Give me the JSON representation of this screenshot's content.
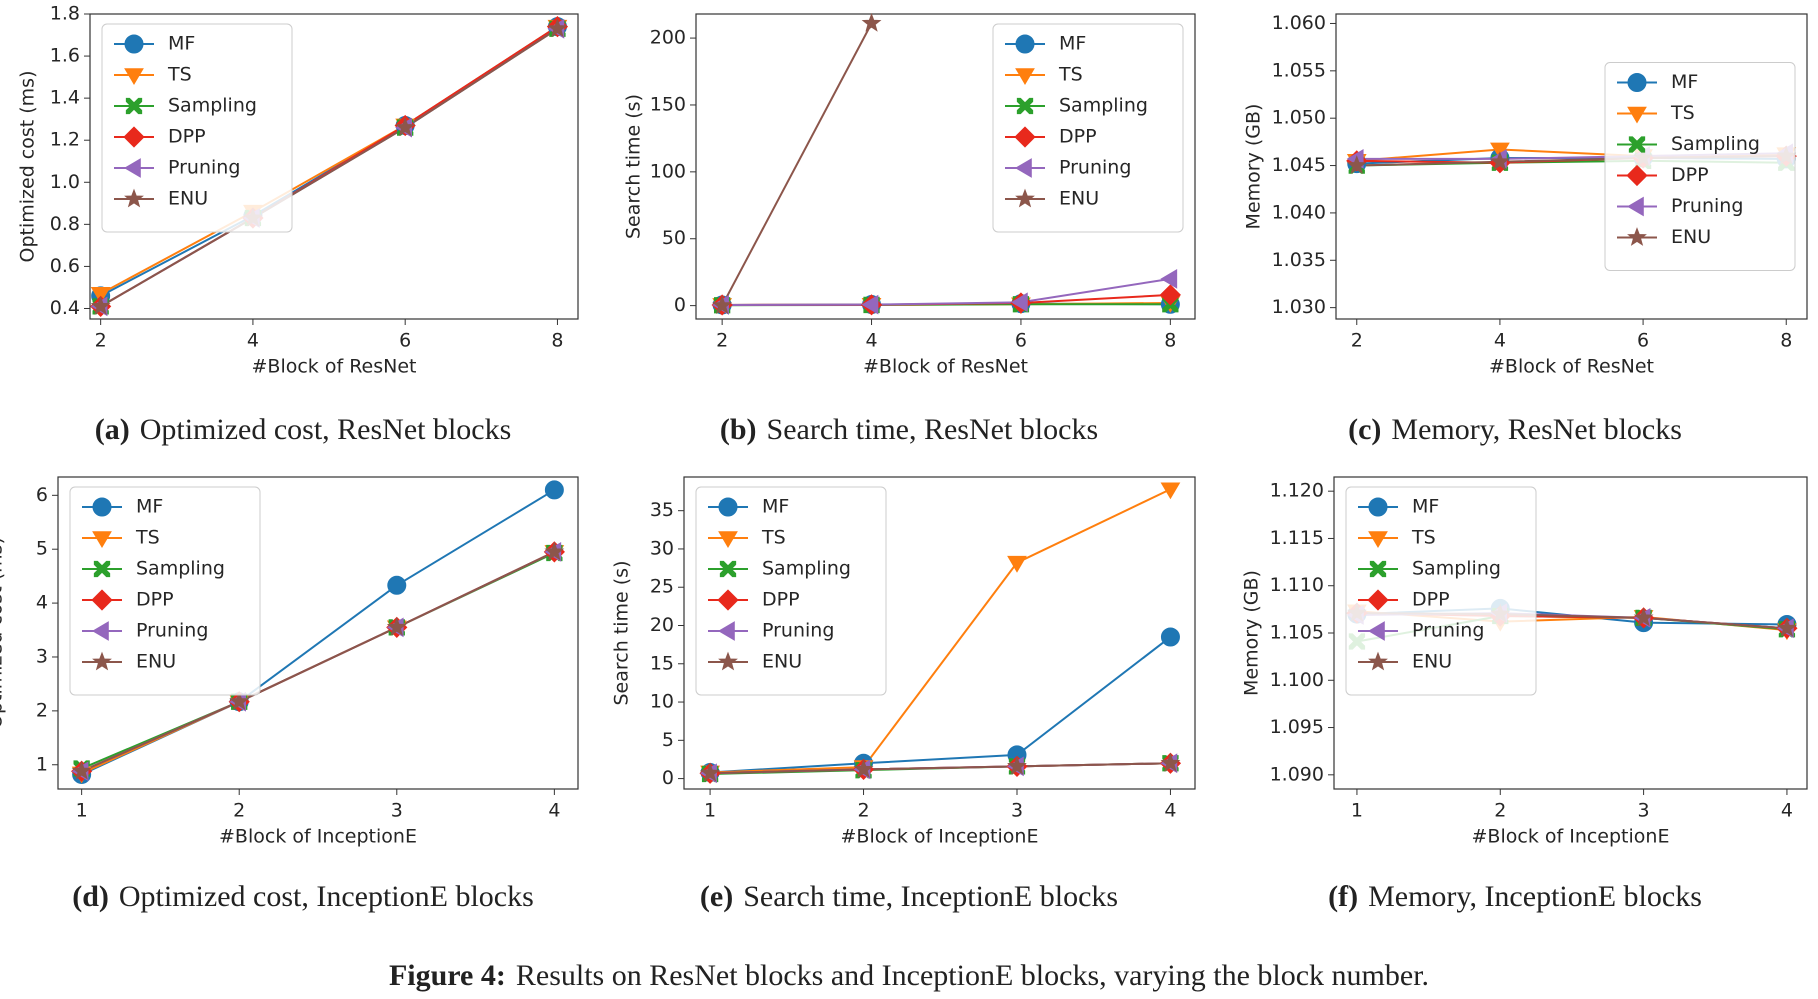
{
  "charts_title": {
    "label": "Figure 4:",
    "text": "Results on ResNet blocks and InceptionE blocks, varying the block number."
  },
  "chart_data": [
    {
      "type": "line",
      "caption_label": "(a)",
      "caption": "Optimized cost, ResNet blocks",
      "xlabel": "#Block of ResNet",
      "ylabel": "Optimized cost (ms)",
      "legend": "upper left",
      "x": [
        2,
        4,
        6,
        8
      ],
      "xlim": [
        1.86,
        8.27
      ],
      "xticks": [
        2,
        4,
        6,
        8
      ],
      "ylim": [
        0.35,
        1.8
      ],
      "yticks": [
        0.4,
        0.6,
        0.8,
        {
          "value": 1,
          "label": "1.0"
        },
        1.2,
        1.4,
        1.6,
        1.8
      ],
      "series": [
        {
          "name": "MF",
          "color": "#1f77b4",
          "marker": "circle",
          "values": [
            0.46,
            0.84,
            1.27,
            1.74
          ]
        },
        {
          "name": "TS",
          "color": "#ff7f0e",
          "marker": "tri-down",
          "values": [
            0.47,
            0.86,
            1.27,
            1.74
          ]
        },
        {
          "name": "Sampling",
          "color": "#2ca02c",
          "marker": "x",
          "values": [
            0.41,
            0.83,
            1.26,
            1.73
          ]
        },
        {
          "name": "DPP",
          "color": "#e8291c",
          "marker": "diamond",
          "values": [
            0.41,
            0.83,
            1.27,
            1.74
          ]
        },
        {
          "name": "Pruning",
          "color": "#9467bd",
          "marker": "tri-left",
          "values": [
            0.41,
            0.83,
            1.26,
            1.73
          ]
        },
        {
          "name": "ENU",
          "color": "#8c564b",
          "marker": "star",
          "values": [
            0.41,
            0.83,
            1.26,
            1.73
          ]
        }
      ]
    },
    {
      "type": "line",
      "caption_label": "(b)",
      "caption": "Search time, ResNet blocks",
      "xlabel": "#Block of ResNet",
      "ylabel": "Search time (s)",
      "legend": "upper right",
      "x": [
        2,
        4,
        6,
        8
      ],
      "xlim": [
        1.65,
        8.33
      ],
      "xticks": [
        2,
        4,
        6,
        8
      ],
      "ylim": [
        -10,
        218
      ],
      "yticks": [
        0,
        50,
        100,
        150,
        200
      ],
      "series": [
        {
          "name": "MF",
          "color": "#1f77b4",
          "marker": "circle",
          "values": [
            0.5,
            0.8,
            1.5,
            1
          ]
        },
        {
          "name": "TS",
          "color": "#ff7f0e",
          "marker": "tri-down",
          "values": [
            0.5,
            0.6,
            1,
            2
          ]
        },
        {
          "name": "Sampling",
          "color": "#2ca02c",
          "marker": "x",
          "values": [
            0.3,
            0.5,
            1,
            1
          ]
        },
        {
          "name": "DPP",
          "color": "#e8291c",
          "marker": "diamond",
          "values": [
            0.5,
            0.6,
            2,
            8
          ]
        },
        {
          "name": "Pruning",
          "color": "#9467bd",
          "marker": "tri-left",
          "values": [
            0.5,
            0.7,
            2.5,
            20
          ]
        },
        {
          "name": "ENU",
          "color": "#8c564b",
          "marker": "star",
          "values": [
            0,
            211,
            null,
            null
          ]
        }
      ]
    },
    {
      "type": "line",
      "caption_label": "(c)",
      "caption": "Memory, ResNet blocks",
      "xlabel": "#Block of ResNet",
      "ylabel": "Memory (GB)",
      "legend": "center right",
      "x": [
        2,
        4,
        6,
        8
      ],
      "xlim": [
        1.71,
        8.29
      ],
      "xticks": [
        2,
        4,
        6,
        8
      ],
      "ylim": [
        1.0288,
        1.061
      ],
      "yticks": [
        {
          "value": 1.03,
          "label": "1.030"
        },
        {
          "value": 1.035,
          "label": "1.035"
        },
        {
          "value": 1.04,
          "label": "1.040"
        },
        {
          "value": 1.045,
          "label": "1.045"
        },
        {
          "value": 1.05,
          "label": "1.050"
        },
        {
          "value": 1.055,
          "label": "1.055"
        },
        {
          "value": 1.06,
          "label": "1.060"
        }
      ],
      "series": [
        {
          "name": "MF",
          "color": "#1f77b4",
          "marker": "circle",
          "values": [
            1.0452,
            1.0458,
            1.0458,
            1.0457
          ]
        },
        {
          "name": "TS",
          "color": "#ff7f0e",
          "marker": "tri-down",
          "values": [
            1.0455,
            1.0467,
            1.046,
            1.0462
          ]
        },
        {
          "name": "Sampling",
          "color": "#2ca02c",
          "marker": "x",
          "values": [
            1.045,
            1.0453,
            1.0455,
            1.0453
          ]
        },
        {
          "name": "DPP",
          "color": "#e8291c",
          "marker": "diamond",
          "values": [
            1.0455,
            1.0453,
            1.0458,
            1.046
          ]
        },
        {
          "name": "Pruning",
          "color": "#9467bd",
          "marker": "tri-left",
          "values": [
            1.0457,
            1.0457,
            1.046,
            1.0463
          ]
        },
        {
          "name": "ENU",
          "color": "#8c564b",
          "marker": "star",
          "values": [
            1.045,
            1.0454,
            1.0458,
            1.046
          ]
        }
      ]
    },
    {
      "type": "line",
      "caption_label": "(d)",
      "caption": "Optimized cost, InceptionE blocks",
      "xlabel": "#Block of InceptionE",
      "ylabel": "Optimized cost (ms)",
      "legend": "upper left",
      "x": [
        1,
        2,
        3,
        4
      ],
      "xlim": [
        0.85,
        4.15
      ],
      "xticks": [
        1,
        2,
        3,
        4
      ],
      "ylim": [
        0.55,
        6.34
      ],
      "yticks": [
        1,
        2,
        3,
        4,
        5,
        6
      ],
      "series": [
        {
          "name": "MF",
          "color": "#1f77b4",
          "marker": "circle",
          "values": [
            0.82,
            2.17,
            4.33,
            6.1
          ]
        },
        {
          "name": "TS",
          "color": "#ff7f0e",
          "marker": "tri-down",
          "values": [
            0.84,
            2.17,
            3.55,
            4.95
          ]
        },
        {
          "name": "Sampling",
          "color": "#2ca02c",
          "marker": "x",
          "values": [
            0.93,
            2.17,
            3.55,
            4.93
          ]
        },
        {
          "name": "DPP",
          "color": "#e8291c",
          "marker": "diamond",
          "values": [
            0.88,
            2.17,
            3.55,
            4.95
          ]
        },
        {
          "name": "Pruning",
          "color": "#9467bd",
          "marker": "tri-left",
          "values": [
            0.88,
            2.17,
            3.55,
            4.95
          ]
        },
        {
          "name": "ENU",
          "color": "#8c564b",
          "marker": "star",
          "values": [
            0.88,
            2.17,
            3.55,
            4.95
          ]
        }
      ]
    },
    {
      "type": "line",
      "caption_label": "(e)",
      "caption": "Search time, InceptionE blocks",
      "xlabel": "#Block of InceptionE",
      "ylabel": "Search time (s)",
      "legend": "upper left",
      "x": [
        1,
        2,
        3,
        4
      ],
      "xlim": [
        0.83,
        4.16
      ],
      "xticks": [
        1,
        2,
        3,
        4
      ],
      "ylim": [
        -1.36,
        39.4
      ],
      "yticks": [
        0,
        5,
        10,
        15,
        20,
        25,
        30,
        35
      ],
      "series": [
        {
          "name": "MF",
          "color": "#1f77b4",
          "marker": "circle",
          "values": [
            0.8,
            2,
            3.1,
            18.5
          ]
        },
        {
          "name": "TS",
          "color": "#ff7f0e",
          "marker": "tri-down",
          "values": [
            0.8,
            1.5,
            28.2,
            37.8
          ]
        },
        {
          "name": "Sampling",
          "color": "#2ca02c",
          "marker": "x",
          "values": [
            0.6,
            1.1,
            1.6,
            2
          ]
        },
        {
          "name": "DPP",
          "color": "#e8291c",
          "marker": "diamond",
          "values": [
            0.7,
            1.2,
            1.6,
            2
          ]
        },
        {
          "name": "Pruning",
          "color": "#9467bd",
          "marker": "tri-left",
          "values": [
            0.7,
            1.2,
            1.6,
            2
          ]
        },
        {
          "name": "ENU",
          "color": "#8c564b",
          "marker": "star",
          "values": [
            0.7,
            1.2,
            1.6,
            2
          ]
        }
      ]
    },
    {
      "type": "line",
      "caption_label": "(f)",
      "caption": "Memory, InceptionE blocks",
      "xlabel": "#Block of InceptionE",
      "ylabel": "Memory (GB)",
      "legend": "upper left",
      "x": [
        1,
        2,
        3,
        4
      ],
      "xlim": [
        0.84,
        4.14
      ],
      "xticks": [
        1,
        2,
        3,
        4
      ],
      "ylim": [
        1.0885,
        1.1215
      ],
      "yticks": [
        {
          "value": 1.09,
          "label": "1.090"
        },
        {
          "value": 1.095,
          "label": "1.095"
        },
        {
          "value": 1.1,
          "label": "1.100"
        },
        {
          "value": 1.105,
          "label": "1.105"
        },
        {
          "value": 1.11,
          "label": "1.110"
        },
        {
          "value": 1.115,
          "label": "1.115"
        },
        {
          "value": 1.12,
          "label": "1.120"
        }
      ],
      "series": [
        {
          "name": "MF",
          "color": "#1f77b4",
          "marker": "circle",
          "values": [
            1.107,
            1.1076,
            1.1061,
            1.1059
          ]
        },
        {
          "name": "TS",
          "color": "#ff7f0e",
          "marker": "tri-down",
          "values": [
            1.1073,
            1.1062,
            1.1067,
            1.1053
          ]
        },
        {
          "name": "Sampling",
          "color": "#2ca02c",
          "marker": "x",
          "values": [
            1.1041,
            1.1068,
            1.1066,
            1.1054
          ]
        },
        {
          "name": "DPP",
          "color": "#e8291c",
          "marker": "diamond",
          "values": [
            1.1071,
            1.1068,
            1.1066,
            1.1055
          ]
        },
        {
          "name": "Pruning",
          "color": "#9467bd",
          "marker": "tri-left",
          "values": [
            1.1069,
            1.1071,
            1.1066,
            1.1055
          ]
        },
        {
          "name": "ENU",
          "color": "#8c564b",
          "marker": "star",
          "values": [
            1.1071,
            1.107,
            1.1066,
            1.1055
          ]
        }
      ]
    }
  ]
}
